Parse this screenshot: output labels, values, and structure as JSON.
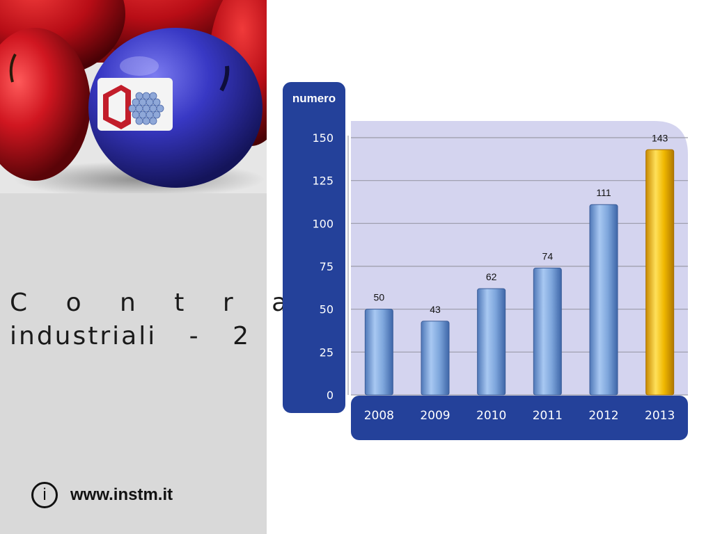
{
  "slide": {
    "title_line1": "C o n t r a t t i",
    "title_line2": "industriali - 2",
    "info_icon": "i",
    "website": "www.instm.it"
  },
  "chart_data": {
    "type": "bar",
    "ylabel": "numero",
    "categories": [
      "2008",
      "2009",
      "2010",
      "2011",
      "2012",
      "2013"
    ],
    "values": [
      50,
      43,
      62,
      74,
      111,
      143
    ],
    "ylim": [
      0,
      150
    ],
    "yticks": [
      0,
      25,
      50,
      75,
      100,
      125,
      150
    ],
    "grid": true,
    "highlight_category": "2013",
    "colors": {
      "bar": "#7ea6dc",
      "highlight_bar": "#f0b800",
      "axis_panel": "#24419a",
      "plot_bg": "#d4d4ef",
      "gridline": "#9a9aa8"
    }
  },
  "image": {
    "icon": "apple-photo-with-instm-logo",
    "colors": {
      "red_apple": "#c0111b",
      "blue_apple": "#3a3ab8",
      "panel": "#d9d9d9"
    }
  }
}
